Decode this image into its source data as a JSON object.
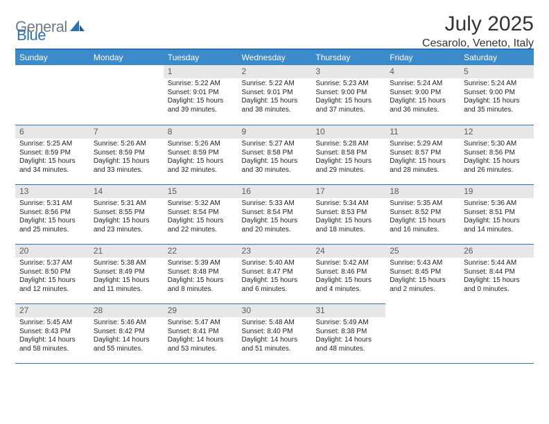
{
  "logo": {
    "part1": "General",
    "part2": "Blue"
  },
  "header": {
    "title": "July 2025",
    "location": "Cesarolo, Veneto, Italy"
  },
  "colors": {
    "header_bg": "#3b8bca",
    "border": "#2a72b5",
    "daynum_bg": "#e7e7e7",
    "logo_gray": "#6f7b84",
    "logo_blue": "#2a72b5",
    "text": "#222222"
  },
  "weekdays": [
    "Sunday",
    "Monday",
    "Tuesday",
    "Wednesday",
    "Thursday",
    "Friday",
    "Saturday"
  ],
  "grid": [
    [
      {
        "blank": true
      },
      {
        "blank": true
      },
      {
        "day": "1",
        "sunrise": "Sunrise: 5:22 AM",
        "sunset": "Sunset: 9:01 PM",
        "dl1": "Daylight: 15 hours",
        "dl2": "and 39 minutes."
      },
      {
        "day": "2",
        "sunrise": "Sunrise: 5:22 AM",
        "sunset": "Sunset: 9:01 PM",
        "dl1": "Daylight: 15 hours",
        "dl2": "and 38 minutes."
      },
      {
        "day": "3",
        "sunrise": "Sunrise: 5:23 AM",
        "sunset": "Sunset: 9:00 PM",
        "dl1": "Daylight: 15 hours",
        "dl2": "and 37 minutes."
      },
      {
        "day": "4",
        "sunrise": "Sunrise: 5:24 AM",
        "sunset": "Sunset: 9:00 PM",
        "dl1": "Daylight: 15 hours",
        "dl2": "and 36 minutes."
      },
      {
        "day": "5",
        "sunrise": "Sunrise: 5:24 AM",
        "sunset": "Sunset: 9:00 PM",
        "dl1": "Daylight: 15 hours",
        "dl2": "and 35 minutes."
      }
    ],
    [
      {
        "day": "6",
        "sunrise": "Sunrise: 5:25 AM",
        "sunset": "Sunset: 8:59 PM",
        "dl1": "Daylight: 15 hours",
        "dl2": "and 34 minutes."
      },
      {
        "day": "7",
        "sunrise": "Sunrise: 5:26 AM",
        "sunset": "Sunset: 8:59 PM",
        "dl1": "Daylight: 15 hours",
        "dl2": "and 33 minutes."
      },
      {
        "day": "8",
        "sunrise": "Sunrise: 5:26 AM",
        "sunset": "Sunset: 8:59 PM",
        "dl1": "Daylight: 15 hours",
        "dl2": "and 32 minutes."
      },
      {
        "day": "9",
        "sunrise": "Sunrise: 5:27 AM",
        "sunset": "Sunset: 8:58 PM",
        "dl1": "Daylight: 15 hours",
        "dl2": "and 30 minutes."
      },
      {
        "day": "10",
        "sunrise": "Sunrise: 5:28 AM",
        "sunset": "Sunset: 8:58 PM",
        "dl1": "Daylight: 15 hours",
        "dl2": "and 29 minutes."
      },
      {
        "day": "11",
        "sunrise": "Sunrise: 5:29 AM",
        "sunset": "Sunset: 8:57 PM",
        "dl1": "Daylight: 15 hours",
        "dl2": "and 28 minutes."
      },
      {
        "day": "12",
        "sunrise": "Sunrise: 5:30 AM",
        "sunset": "Sunset: 8:56 PM",
        "dl1": "Daylight: 15 hours",
        "dl2": "and 26 minutes."
      }
    ],
    [
      {
        "day": "13",
        "sunrise": "Sunrise: 5:31 AM",
        "sunset": "Sunset: 8:56 PM",
        "dl1": "Daylight: 15 hours",
        "dl2": "and 25 minutes."
      },
      {
        "day": "14",
        "sunrise": "Sunrise: 5:31 AM",
        "sunset": "Sunset: 8:55 PM",
        "dl1": "Daylight: 15 hours",
        "dl2": "and 23 minutes."
      },
      {
        "day": "15",
        "sunrise": "Sunrise: 5:32 AM",
        "sunset": "Sunset: 8:54 PM",
        "dl1": "Daylight: 15 hours",
        "dl2": "and 22 minutes."
      },
      {
        "day": "16",
        "sunrise": "Sunrise: 5:33 AM",
        "sunset": "Sunset: 8:54 PM",
        "dl1": "Daylight: 15 hours",
        "dl2": "and 20 minutes."
      },
      {
        "day": "17",
        "sunrise": "Sunrise: 5:34 AM",
        "sunset": "Sunset: 8:53 PM",
        "dl1": "Daylight: 15 hours",
        "dl2": "and 18 minutes."
      },
      {
        "day": "18",
        "sunrise": "Sunrise: 5:35 AM",
        "sunset": "Sunset: 8:52 PM",
        "dl1": "Daylight: 15 hours",
        "dl2": "and 16 minutes."
      },
      {
        "day": "19",
        "sunrise": "Sunrise: 5:36 AM",
        "sunset": "Sunset: 8:51 PM",
        "dl1": "Daylight: 15 hours",
        "dl2": "and 14 minutes."
      }
    ],
    [
      {
        "day": "20",
        "sunrise": "Sunrise: 5:37 AM",
        "sunset": "Sunset: 8:50 PM",
        "dl1": "Daylight: 15 hours",
        "dl2": "and 12 minutes."
      },
      {
        "day": "21",
        "sunrise": "Sunrise: 5:38 AM",
        "sunset": "Sunset: 8:49 PM",
        "dl1": "Daylight: 15 hours",
        "dl2": "and 11 minutes."
      },
      {
        "day": "22",
        "sunrise": "Sunrise: 5:39 AM",
        "sunset": "Sunset: 8:48 PM",
        "dl1": "Daylight: 15 hours",
        "dl2": "and 8 minutes."
      },
      {
        "day": "23",
        "sunrise": "Sunrise: 5:40 AM",
        "sunset": "Sunset: 8:47 PM",
        "dl1": "Daylight: 15 hours",
        "dl2": "and 6 minutes."
      },
      {
        "day": "24",
        "sunrise": "Sunrise: 5:42 AM",
        "sunset": "Sunset: 8:46 PM",
        "dl1": "Daylight: 15 hours",
        "dl2": "and 4 minutes."
      },
      {
        "day": "25",
        "sunrise": "Sunrise: 5:43 AM",
        "sunset": "Sunset: 8:45 PM",
        "dl1": "Daylight: 15 hours",
        "dl2": "and 2 minutes."
      },
      {
        "day": "26",
        "sunrise": "Sunrise: 5:44 AM",
        "sunset": "Sunset: 8:44 PM",
        "dl1": "Daylight: 15 hours",
        "dl2": "and 0 minutes."
      }
    ],
    [
      {
        "day": "27",
        "sunrise": "Sunrise: 5:45 AM",
        "sunset": "Sunset: 8:43 PM",
        "dl1": "Daylight: 14 hours",
        "dl2": "and 58 minutes."
      },
      {
        "day": "28",
        "sunrise": "Sunrise: 5:46 AM",
        "sunset": "Sunset: 8:42 PM",
        "dl1": "Daylight: 14 hours",
        "dl2": "and 55 minutes."
      },
      {
        "day": "29",
        "sunrise": "Sunrise: 5:47 AM",
        "sunset": "Sunset: 8:41 PM",
        "dl1": "Daylight: 14 hours",
        "dl2": "and 53 minutes."
      },
      {
        "day": "30",
        "sunrise": "Sunrise: 5:48 AM",
        "sunset": "Sunset: 8:40 PM",
        "dl1": "Daylight: 14 hours",
        "dl2": "and 51 minutes."
      },
      {
        "day": "31",
        "sunrise": "Sunrise: 5:49 AM",
        "sunset": "Sunset: 8:38 PM",
        "dl1": "Daylight: 14 hours",
        "dl2": "and 48 minutes."
      },
      {
        "blank": true
      },
      {
        "blank": true
      }
    ]
  ]
}
